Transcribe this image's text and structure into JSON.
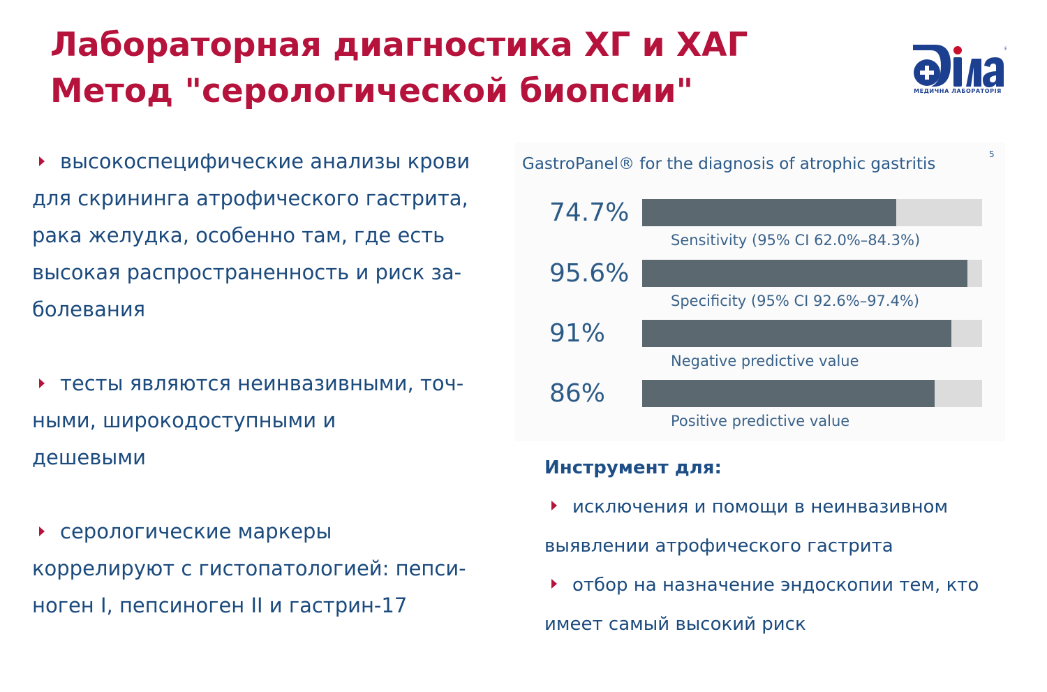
{
  "title": {
    "line1": "Лабораторная диагностика ХГ и ХАГ",
    "line2": "Метод \"серологической биопсии\""
  },
  "logo": {
    "brand": "Діла",
    "caption": "МЕДИЧНА ЛАБОРАТОРІЯ",
    "registered": "®",
    "colors": {
      "blue": "#1d3f8f",
      "red": "#c8102e"
    }
  },
  "left_bullets": [
    {
      "lines": [
        "высокоспецифические анализы крови",
        "для скрининга атрофического гастрита,",
        "рака желудка, особенно там, где есть",
        "высокая распространенность и риск за-",
        "болевания"
      ]
    },
    {
      "lines": [
        "тесты являются неинвазивными, точ-",
        "ными, широкодоступными и",
        "дешевыми"
      ]
    },
    {
      "lines": [
        "серологические маркеры",
        "коррелируют с гистопатологией: пепси-",
        "ноген I, пепсиноген II и гастрин-17"
      ]
    }
  ],
  "chart_data": {
    "type": "bar",
    "title": "GastroPanel® for the diagnosis of atrophic gastritis",
    "title_superscript": "5",
    "orientation": "horizontal",
    "xlim": [
      0,
      100
    ],
    "grid": false,
    "colors": {
      "fill": "#5b6870",
      "track": "#dcdcdc",
      "text": "#2c5a86"
    },
    "bars": [
      {
        "value_label": "74.7%",
        "value": 74.7,
        "label": "Sensitivity (95% CI 62.0%–84.3%)"
      },
      {
        "value_label": "95.6%",
        "value": 95.6,
        "label": "Specificity (95% CI 92.6%–97.4%)"
      },
      {
        "value_label": "91%",
        "value": 91,
        "label": "Negative predictive value"
      },
      {
        "value_label": "86%",
        "value": 86,
        "label": "Positive predictive value"
      }
    ]
  },
  "tool": {
    "heading": "Инструмент для:",
    "items": [
      {
        "line1": "исключения и помощи в неинвазивном",
        "line2": "выявлении атрофического гастрита"
      },
      {
        "line1": "отбор на назначение эндоскопии тем, кто",
        "line2": "имеет самый высокий риск"
      }
    ]
  },
  "colors": {
    "title": "#b5123c",
    "body_text": "#1b4a7d",
    "bullet_arrow": "#b5123c"
  }
}
